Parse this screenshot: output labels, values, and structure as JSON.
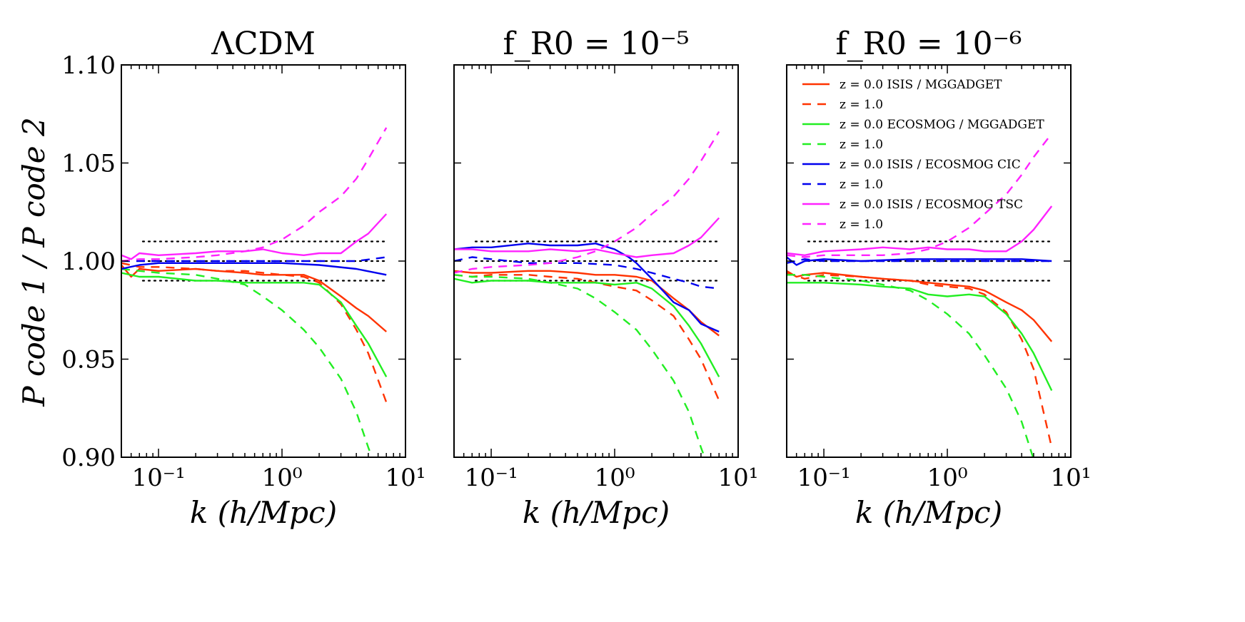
{
  "chart_data": {
    "type": "line",
    "xscale": "log",
    "xlim": [
      0.05,
      10
    ],
    "ylim": [
      0.9,
      1.1
    ],
    "x_ticks": [
      0.1,
      1,
      10
    ],
    "x_tick_labels": [
      "10⁻¹",
      "10⁰",
      "10¹"
    ],
    "y_ticks": [
      0.9,
      0.95,
      1.0,
      1.05,
      1.1
    ],
    "y_tick_labels": [
      "0.90",
      "0.95",
      "1.00",
      "1.05",
      "1.10"
    ],
    "xlabel": "k   (h/Mpc)",
    "ylabel": "P code 1 / P code 2",
    "reference_lines": [
      0.99,
      1.0,
      1.01
    ],
    "legend": {
      "location": "upper-left of third panel",
      "entries": [
        {
          "text": "z = 0.0 ISIS / MGGADGET",
          "color": "#ff3300",
          "style": "solid"
        },
        {
          "text": "z = 1.0",
          "color": "#ff3300",
          "style": "dashed"
        },
        {
          "text": "z = 0.0 ECOSMOG / MGGADGET",
          "color": "#22ee22",
          "style": "solid"
        },
        {
          "text": "z = 1.0",
          "color": "#22ee22",
          "style": "dashed"
        },
        {
          "text": "z = 0.0 ISIS / ECOSMOG CIC",
          "color": "#0000ee",
          "style": "solid"
        },
        {
          "text": "z = 1.0",
          "color": "#0000ee",
          "style": "dashed"
        },
        {
          "text": "z = 0.0 ISIS / ECOSMOG TSC",
          "color": "#ff22ff",
          "style": "solid"
        },
        {
          "text": "z = 1.0",
          "color": "#ff22ff",
          "style": "dashed"
        }
      ]
    },
    "panels": [
      {
        "title": "ΛCDM",
        "series": [
          {
            "name": "ISIS/MGGADGET z=0.0",
            "color": "#ff3300",
            "style": "solid",
            "x": [
              0.05,
              0.06,
              0.07,
              0.1,
              0.2,
              0.3,
              0.5,
              0.7,
              1.0,
              1.5,
              2.0,
              3.0,
              4.0,
              5.0,
              7.0
            ],
            "y": [
              0.998,
              0.992,
              0.996,
              0.995,
              0.996,
              0.995,
              0.994,
              0.993,
              0.993,
              0.993,
              0.99,
              0.982,
              0.976,
              0.972,
              0.964
            ]
          },
          {
            "name": "ISIS/MGGADGET z=1.0",
            "color": "#ff3300",
            "style": "dashed",
            "x": [
              0.05,
              0.07,
              0.1,
              0.2,
              0.3,
              0.5,
              0.7,
              1.0,
              1.5,
              2.0,
              3.0,
              4.0,
              5.0,
              7.0
            ],
            "y": [
              0.999,
              0.997,
              0.997,
              0.996,
              0.995,
              0.995,
              0.994,
              0.993,
              0.992,
              0.989,
              0.978,
              0.965,
              0.953,
              0.928
            ]
          },
          {
            "name": "ECOSMOG/MGGADGET z=0.0",
            "color": "#22ee22",
            "style": "solid",
            "x": [
              0.05,
              0.07,
              0.1,
              0.2,
              0.3,
              0.5,
              0.7,
              1.0,
              1.5,
              2.0,
              3.0,
              4.0,
              5.0,
              7.0
            ],
            "y": [
              0.994,
              0.992,
              0.992,
              0.99,
              0.99,
              0.989,
              0.989,
              0.989,
              0.989,
              0.988,
              0.979,
              0.967,
              0.958,
              0.941
            ]
          },
          {
            "name": "ECOSMOG/MGGADGET z=1.0",
            "color": "#22ee22",
            "style": "dashed",
            "x": [
              0.05,
              0.07,
              0.1,
              0.2,
              0.3,
              0.5,
              0.7,
              1.0,
              1.5,
              2.0,
              3.0,
              4.0,
              5.0,
              5.5
            ],
            "y": [
              0.996,
              0.995,
              0.994,
              0.993,
              0.991,
              0.988,
              0.982,
              0.975,
              0.965,
              0.956,
              0.94,
              0.923,
              0.905,
              0.898
            ]
          },
          {
            "name": "ISIS/ECOSMOG CIC z=0.0",
            "color": "#0000ee",
            "style": "solid",
            "x": [
              0.05,
              0.07,
              0.1,
              0.2,
              0.5,
              1.0,
              2.0,
              4.0,
              7.0
            ],
            "y": [
              0.996,
              0.998,
              0.999,
              0.999,
              0.999,
              0.999,
              0.998,
              0.996,
              0.993
            ]
          },
          {
            "name": "ISIS/ECOSMOG CIC z=1.0",
            "color": "#0000ee",
            "style": "dashed",
            "x": [
              0.05,
              0.07,
              0.1,
              0.2,
              0.5,
              1.0,
              2.0,
              4.0,
              7.0
            ],
            "y": [
              1.0,
              1.0,
              1.0,
              1.0,
              1.0,
              1.0,
              1.0,
              1.0,
              1.002
            ]
          },
          {
            "name": "ISIS/ECOSMOG TSC z=0.0",
            "color": "#ff22ff",
            "style": "solid",
            "x": [
              0.05,
              0.06,
              0.07,
              0.1,
              0.2,
              0.3,
              0.5,
              0.7,
              1.0,
              1.5,
              2.0,
              3.0,
              4.0,
              5.0,
              7.0
            ],
            "y": [
              1.003,
              1.001,
              1.004,
              1.003,
              1.004,
              1.005,
              1.005,
              1.006,
              1.004,
              1.003,
              1.004,
              1.004,
              1.01,
              1.014,
              1.024
            ]
          },
          {
            "name": "ISIS/ECOSMOG TSC z=1.0",
            "color": "#ff22ff",
            "style": "dashed",
            "x": [
              0.05,
              0.07,
              0.1,
              0.2,
              0.3,
              0.5,
              0.7,
              1.0,
              1.5,
              2.0,
              3.0,
              4.0,
              5.0,
              7.0
            ],
            "y": [
              1.0,
              1.001,
              1.001,
              1.002,
              1.003,
              1.005,
              1.007,
              1.011,
              1.018,
              1.025,
              1.033,
              1.042,
              1.052,
              1.068
            ]
          }
        ]
      },
      {
        "title": "f_R0 = 10⁻⁵",
        "series": [
          {
            "name": "ISIS/MGGADGET z=0.0",
            "color": "#ff3300",
            "style": "solid",
            "x": [
              0.05,
              0.07,
              0.1,
              0.2,
              0.3,
              0.5,
              0.7,
              1.0,
              1.5,
              2.0,
              3.0,
              4.0,
              5.0,
              7.0
            ],
            "y": [
              0.995,
              0.994,
              0.994,
              0.995,
              0.995,
              0.994,
              0.993,
              0.993,
              0.992,
              0.99,
              0.981,
              0.975,
              0.969,
              0.962
            ]
          },
          {
            "name": "ISIS/MGGADGET z=1.0",
            "color": "#ff3300",
            "style": "dashed",
            "x": [
              0.05,
              0.07,
              0.1,
              0.2,
              0.3,
              0.5,
              0.7,
              1.0,
              1.5,
              2.0,
              3.0,
              4.0,
              5.0,
              7.0
            ],
            "y": [
              0.993,
              0.992,
              0.993,
              0.993,
              0.992,
              0.991,
              0.989,
              0.987,
              0.985,
              0.98,
              0.972,
              0.96,
              0.95,
              0.929
            ]
          },
          {
            "name": "ECOSMOG/MGGADGET z=0.0",
            "color": "#22ee22",
            "style": "solid",
            "x": [
              0.05,
              0.07,
              0.1,
              0.2,
              0.3,
              0.5,
              0.7,
              1.0,
              1.5,
              2.0,
              3.0,
              4.0,
              5.0,
              7.0
            ],
            "y": [
              0.991,
              0.989,
              0.99,
              0.99,
              0.989,
              0.989,
              0.989,
              0.988,
              0.989,
              0.986,
              0.977,
              0.967,
              0.958,
              0.941
            ]
          },
          {
            "name": "ECOSMOG/MGGADGET z=1.0",
            "color": "#22ee22",
            "style": "dashed",
            "x": [
              0.05,
              0.07,
              0.1,
              0.2,
              0.3,
              0.5,
              0.7,
              1.0,
              1.5,
              2.0,
              3.0,
              4.0,
              5.0,
              5.5
            ],
            "y": [
              0.993,
              0.992,
              0.992,
              0.991,
              0.989,
              0.986,
              0.981,
              0.974,
              0.965,
              0.955,
              0.939,
              0.923,
              0.905,
              0.898
            ]
          },
          {
            "name": "ISIS/ECOSMOG CIC z=0.0",
            "color": "#0000ee",
            "style": "solid",
            "x": [
              0.05,
              0.07,
              0.1,
              0.2,
              0.3,
              0.5,
              0.7,
              1.0,
              1.3,
              1.5,
              2.0,
              3.0,
              4.0,
              5.0,
              7.0
            ],
            "y": [
              1.006,
              1.007,
              1.007,
              1.009,
              1.008,
              1.008,
              1.009,
              1.006,
              1.002,
              0.999,
              0.991,
              0.979,
              0.975,
              0.968,
              0.964
            ]
          },
          {
            "name": "ISIS/ECOSMOG CIC z=1.0",
            "color": "#0000ee",
            "style": "dashed",
            "x": [
              0.05,
              0.07,
              0.1,
              0.2,
              0.5,
              1.0,
              1.5,
              2.0,
              3.0,
              4.0,
              5.0,
              7.0
            ],
            "y": [
              1.0,
              1.002,
              1.001,
              0.999,
              0.999,
              0.998,
              0.996,
              0.994,
              0.991,
              0.989,
              0.987,
              0.986
            ]
          },
          {
            "name": "ISIS/ECOSMOG TSC z=0.0",
            "color": "#ff22ff",
            "style": "solid",
            "x": [
              0.05,
              0.07,
              0.1,
              0.2,
              0.3,
              0.5,
              0.7,
              1.0,
              1.5,
              2.0,
              3.0,
              4.0,
              5.0,
              7.0
            ],
            "y": [
              1.006,
              1.006,
              1.005,
              1.005,
              1.006,
              1.005,
              1.006,
              1.004,
              1.002,
              1.003,
              1.004,
              1.008,
              1.012,
              1.022
            ]
          },
          {
            "name": "ISIS/ECOSMOG TSC z=1.0",
            "color": "#ff22ff",
            "style": "dashed",
            "x": [
              0.05,
              0.07,
              0.1,
              0.2,
              0.3,
              0.5,
              0.7,
              1.0,
              1.5,
              2.0,
              3.0,
              4.0,
              5.0,
              7.0
            ],
            "y": [
              0.994,
              0.996,
              0.997,
              0.998,
              0.999,
              1.002,
              1.005,
              1.01,
              1.017,
              1.024,
              1.033,
              1.042,
              1.051,
              1.066
            ]
          }
        ]
      },
      {
        "title": "f_R0 = 10⁻⁶",
        "series": [
          {
            "name": "ISIS/MGGADGET z=0.0",
            "color": "#ff3300",
            "style": "solid",
            "x": [
              0.05,
              0.06,
              0.07,
              0.1,
              0.2,
              0.3,
              0.5,
              0.7,
              1.0,
              1.5,
              2.0,
              3.0,
              4.0,
              5.0,
              7.0
            ],
            "y": [
              0.995,
              0.992,
              0.993,
              0.994,
              0.992,
              0.991,
              0.99,
              0.989,
              0.988,
              0.987,
              0.985,
              0.979,
              0.975,
              0.97,
              0.959
            ]
          },
          {
            "name": "ISIS/MGGADGET z=1.0",
            "color": "#ff3300",
            "style": "dashed",
            "x": [
              0.05,
              0.07,
              0.1,
              0.2,
              0.3,
              0.5,
              0.7,
              1.0,
              1.5,
              2.0,
              3.0,
              4.0,
              5.0,
              7.0
            ],
            "y": [
              0.994,
              0.991,
              0.993,
              0.992,
              0.991,
              0.99,
              0.988,
              0.987,
              0.986,
              0.983,
              0.974,
              0.96,
              0.945,
              0.905
            ]
          },
          {
            "name": "ECOSMOG/MGGADGET z=0.0",
            "color": "#22ee22",
            "style": "solid",
            "x": [
              0.05,
              0.07,
              0.1,
              0.2,
              0.3,
              0.5,
              0.7,
              1.0,
              1.5,
              2.0,
              3.0,
              4.0,
              5.0,
              7.0
            ],
            "y": [
              0.989,
              0.989,
              0.989,
              0.988,
              0.987,
              0.986,
              0.983,
              0.982,
              0.983,
              0.982,
              0.973,
              0.963,
              0.953,
              0.934
            ]
          },
          {
            "name": "ECOSMOG/MGGADGET z=1.0",
            "color": "#22ee22",
            "style": "dashed",
            "x": [
              0.05,
              0.07,
              0.1,
              0.2,
              0.3,
              0.5,
              0.7,
              1.0,
              1.5,
              2.0,
              3.0,
              4.0,
              5.0
            ],
            "y": [
              0.993,
              0.993,
              0.992,
              0.99,
              0.988,
              0.985,
              0.98,
              0.973,
              0.963,
              0.952,
              0.935,
              0.918,
              0.899
            ]
          },
          {
            "name": "ISIS/ECOSMOG CIC z=0.0",
            "color": "#0000ee",
            "style": "solid",
            "x": [
              0.05,
              0.06,
              0.07,
              0.1,
              0.2,
              0.5,
              1.0,
              2.0,
              4.0,
              7.0
            ],
            "y": [
              1.002,
              0.998,
              1.0,
              1.001,
              1.0,
              1.001,
              1.001,
              1.001,
              1.001,
              1.0
            ]
          },
          {
            "name": "ISIS/ECOSMOG CIC z=1.0",
            "color": "#0000ee",
            "style": "dashed",
            "x": [
              0.05,
              0.07,
              0.1,
              0.2,
              0.5,
              1.0,
              2.0,
              4.0,
              7.0
            ],
            "y": [
              0.999,
              1.001,
              1.0,
              1.0,
              1.0,
              1.0,
              1.0,
              1.0,
              1.0
            ]
          },
          {
            "name": "ISIS/ECOSMOG TSC z=0.0",
            "color": "#ff22ff",
            "style": "solid",
            "x": [
              0.05,
              0.07,
              0.1,
              0.2,
              0.3,
              0.5,
              0.7,
              1.0,
              1.5,
              2.0,
              3.0,
              4.0,
              5.0,
              7.0
            ],
            "y": [
              1.004,
              1.003,
              1.005,
              1.006,
              1.007,
              1.006,
              1.007,
              1.006,
              1.006,
              1.005,
              1.005,
              1.01,
              1.016,
              1.028
            ]
          },
          {
            "name": "ISIS/ECOSMOG TSC z=1.0",
            "color": "#ff22ff",
            "style": "dashed",
            "x": [
              0.05,
              0.07,
              0.1,
              0.2,
              0.3,
              0.5,
              0.7,
              1.0,
              1.5,
              2.0,
              3.0,
              4.0,
              5.0,
              7.0
            ],
            "y": [
              1.003,
              1.002,
              1.003,
              1.003,
              1.003,
              1.004,
              1.006,
              1.01,
              1.017,
              1.024,
              1.034,
              1.044,
              1.053,
              1.065
            ]
          }
        ]
      }
    ]
  }
}
